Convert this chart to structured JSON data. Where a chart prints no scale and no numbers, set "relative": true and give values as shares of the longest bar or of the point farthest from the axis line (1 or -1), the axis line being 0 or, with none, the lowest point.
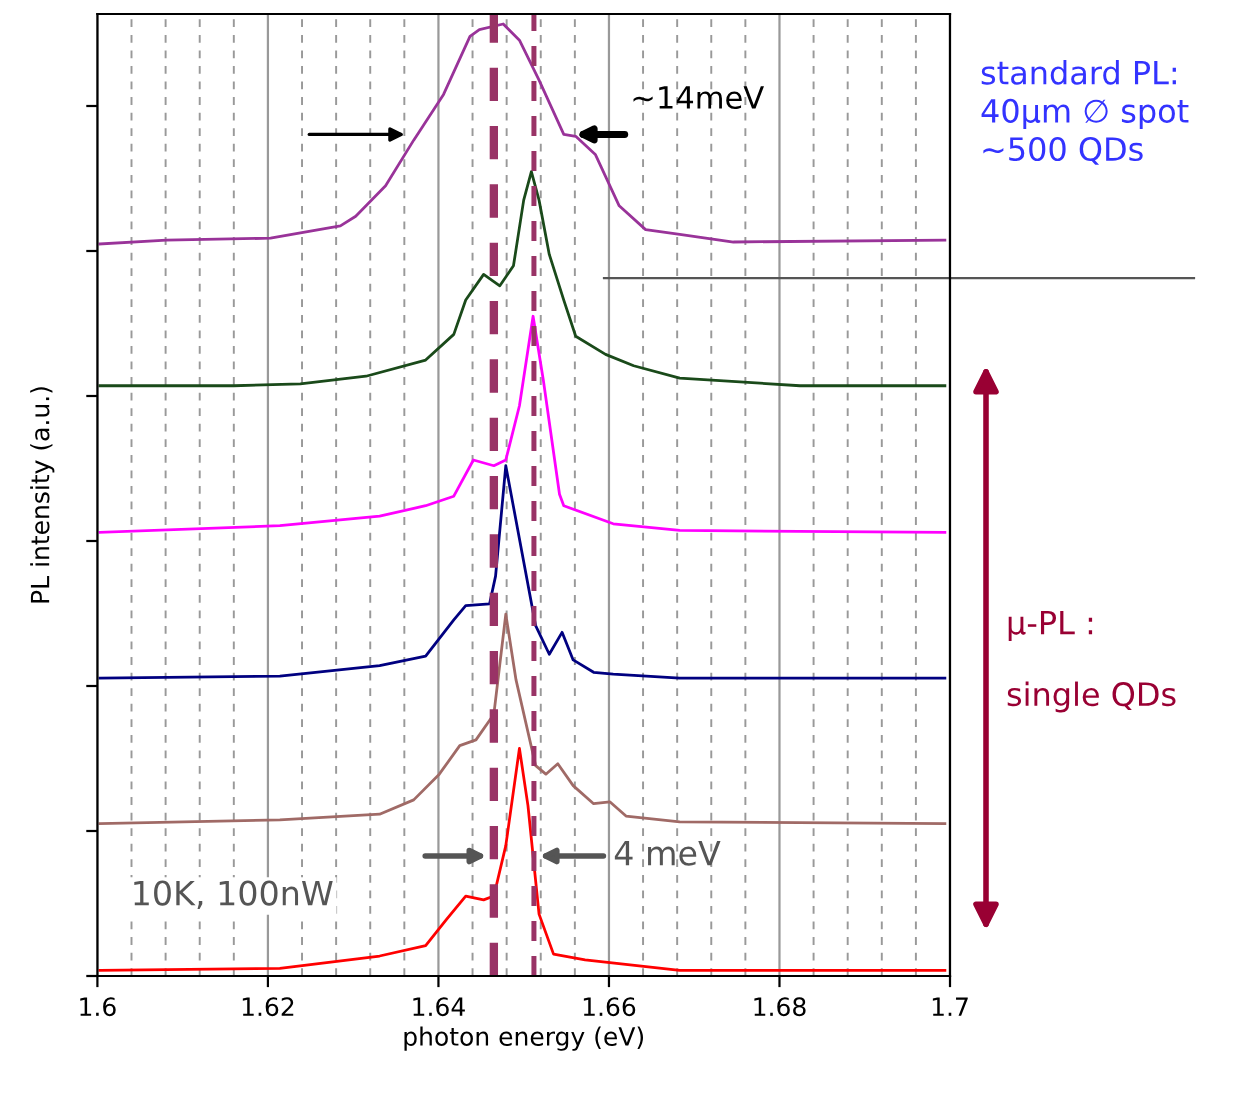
{
  "chart_data": {
    "type": "line",
    "relative": true,
    "xlabel": "photon energy (eV)",
    "ylabel": "PL intensity (a.u.)",
    "xlim": [
      1.6,
      1.7
    ],
    "xticks": [
      1.6,
      1.62,
      1.64,
      1.66,
      1.68,
      1.7
    ],
    "grid": "x",
    "marker": "none",
    "line_style": "solid",
    "series": [
      {
        "color": "#993399",
        "x": [
          1.6003,
          1.6081,
          1.6203,
          1.6285,
          1.6303,
          1.6338,
          1.6371,
          1.6406,
          1.6437,
          1.6448,
          1.6476,
          1.6495,
          1.6518,
          1.6547,
          1.6561,
          1.6584,
          1.6612,
          1.6643,
          1.6683,
          1.6746,
          1.6994
        ],
        "values": [
          0.769,
          0.773,
          0.775,
          0.788,
          0.798,
          0.83,
          0.878,
          0.926,
          0.987,
          0.994,
          1.0,
          0.983,
          0.941,
          0.884,
          0.882,
          0.863,
          0.809,
          0.784,
          0.779,
          0.771,
          0.773
        ]
      },
      {
        "color": "#1a4a1a",
        "x": [
          1.6003,
          1.616,
          1.6238,
          1.6315,
          1.6385,
          1.6418,
          1.6432,
          1.6453,
          1.6472,
          1.6488,
          1.65,
          1.6509,
          1.6518,
          1.653,
          1.6547,
          1.6561,
          1.6596,
          1.6629,
          1.6683,
          1.6824,
          1.6994
        ],
        "values": [
          0.62,
          0.62,
          0.622,
          0.63,
          0.647,
          0.674,
          0.71,
          0.737,
          0.725,
          0.746,
          0.815,
          0.845,
          0.815,
          0.758,
          0.71,
          0.672,
          0.653,
          0.641,
          0.628,
          0.62,
          0.62
        ]
      },
      {
        "color": "#ff00ff",
        "x": [
          1.6003,
          1.6214,
          1.6331,
          1.6385,
          1.6418,
          1.6441,
          1.6465,
          1.6479,
          1.6495,
          1.6511,
          1.6523,
          1.6542,
          1.6547,
          1.6605,
          1.6683,
          1.6994
        ],
        "values": [
          0.466,
          0.473,
          0.483,
          0.494,
          0.504,
          0.542,
          0.536,
          0.542,
          0.599,
          0.693,
          0.626,
          0.506,
          0.494,
          0.475,
          0.468,
          0.466
        ]
      },
      {
        "color": "#000080",
        "x": [
          1.6003,
          1.6214,
          1.6331,
          1.6385,
          1.6418,
          1.6432,
          1.646,
          1.6467,
          1.6479,
          1.6514,
          1.653,
          1.6545,
          1.6558,
          1.6582,
          1.6605,
          1.6683,
          1.6994
        ],
        "values": [
          0.313,
          0.315,
          0.326,
          0.336,
          0.374,
          0.389,
          0.391,
          0.42,
          0.536,
          0.368,
          0.338,
          0.361,
          0.332,
          0.319,
          0.317,
          0.313,
          0.313
        ]
      },
      {
        "color": "#a06a66",
        "x": [
          1.6003,
          1.6214,
          1.6331,
          1.6371,
          1.6401,
          1.6425,
          1.6444,
          1.6465,
          1.6479,
          1.6491,
          1.6514,
          1.6526,
          1.654,
          1.6558,
          1.6582,
          1.6601,
          1.662,
          1.6683,
          1.6994
        ],
        "values": [
          0.16,
          0.164,
          0.17,
          0.185,
          0.212,
          0.242,
          0.248,
          0.275,
          0.38,
          0.311,
          0.221,
          0.212,
          0.223,
          0.2,
          0.181,
          0.183,
          0.168,
          0.162,
          0.16
        ]
      },
      {
        "color": "#ff0000",
        "x": [
          1.6003,
          1.6214,
          1.6331,
          1.6385,
          1.6409,
          1.6432,
          1.6453,
          1.6465,
          1.6479,
          1.6495,
          1.6505,
          1.6518,
          1.6535,
          1.6572,
          1.6683,
          1.6994
        ],
        "values": [
          0.006,
          0.008,
          0.021,
          0.032,
          0.059,
          0.084,
          0.08,
          0.084,
          0.137,
          0.239,
          0.179,
          0.065,
          0.023,
          0.017,
          0.006,
          0.006
        ]
      }
    ],
    "ref_lines": [
      {
        "axis": "x",
        "value": 1.6465,
        "color": "#993366",
        "line_style": "dashed"
      },
      {
        "axis": "x",
        "value": 1.6512,
        "color": "#993366",
        "line_style": "dashed"
      },
      {
        "axis": "y",
        "value": 0.733,
        "color": "#555555",
        "line_style": "solid"
      }
    ],
    "annotations": [
      "~14meV",
      "10K, 100nW",
      "4 meV",
      "standard PL:\n40μm ∅ spot\n~500 QDs",
      "μ-PL :\n\nsingle QDs"
    ]
  }
}
